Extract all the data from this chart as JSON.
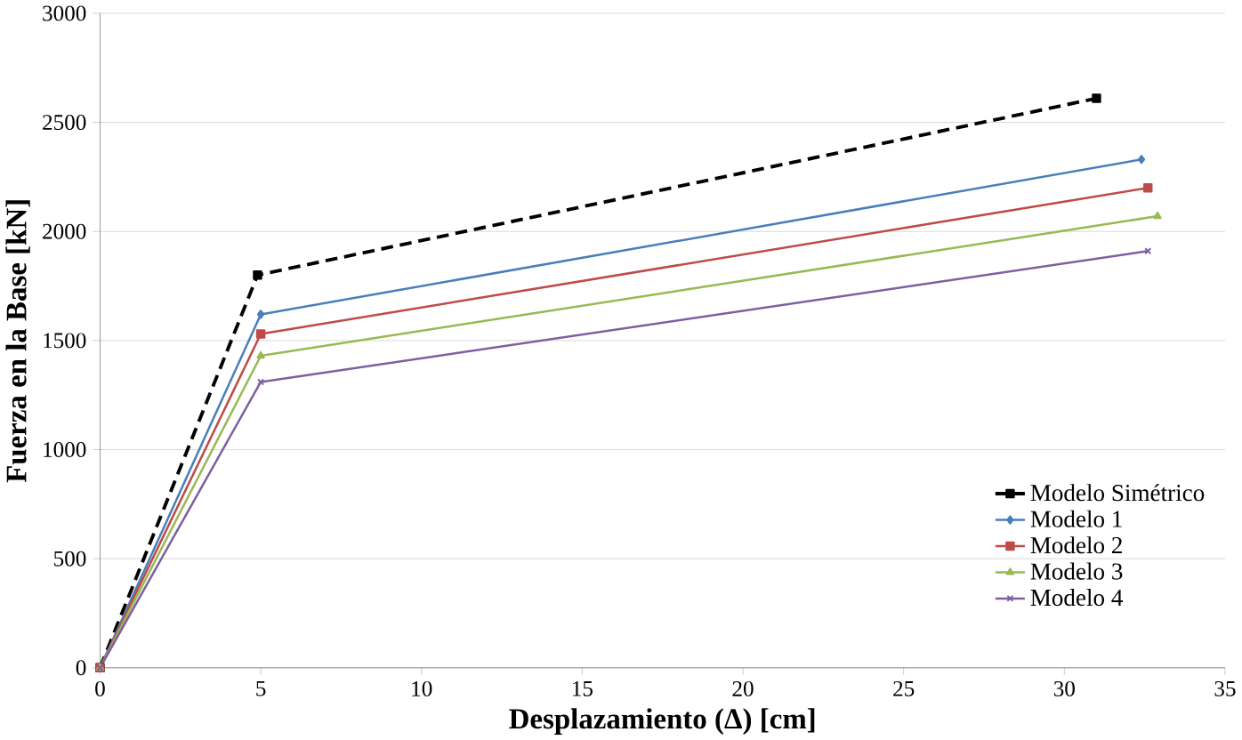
{
  "chart_data": {
    "type": "line",
    "xlabel": "Desplazamiento (Δ) [cm]",
    "ylabel": "Fuerza en la Base [kN]",
    "xlim": [
      0,
      35
    ],
    "xticks": [
      0,
      5,
      10,
      15,
      20,
      25,
      30,
      35
    ],
    "ylim": [
      0,
      3000
    ],
    "yticks": [
      0,
      500,
      1000,
      1500,
      2000,
      2500,
      3000
    ],
    "grid": "y",
    "legend": "right",
    "series": [
      {
        "name": "Modelo Simétrico",
        "color": "#000000",
        "line_style": "dashed",
        "marker": "square",
        "x": [
          0,
          4.9,
          31.0
        ],
        "values": [
          0,
          1800,
          2610
        ]
      },
      {
        "name": "Modelo 1",
        "color": "#4a7ebb",
        "marker": "diamond",
        "x": [
          0,
          5.0,
          32.4
        ],
        "values": [
          0,
          1620,
          2330
        ]
      },
      {
        "name": "Modelo 2",
        "color": "#be4b48",
        "marker": "square",
        "x": [
          0,
          5.0,
          32.6
        ],
        "values": [
          0,
          1530,
          2200
        ]
      },
      {
        "name": "Modelo 3",
        "color": "#98b954",
        "marker": "triangle",
        "x": [
          0,
          5.0,
          32.9
        ],
        "values": [
          0,
          1430,
          2070
        ]
      },
      {
        "name": "Modelo 4",
        "color": "#7d60a0",
        "marker": "cross",
        "x": [
          0,
          5.0,
          32.6
        ],
        "values": [
          0,
          1310,
          1910
        ]
      }
    ]
  }
}
